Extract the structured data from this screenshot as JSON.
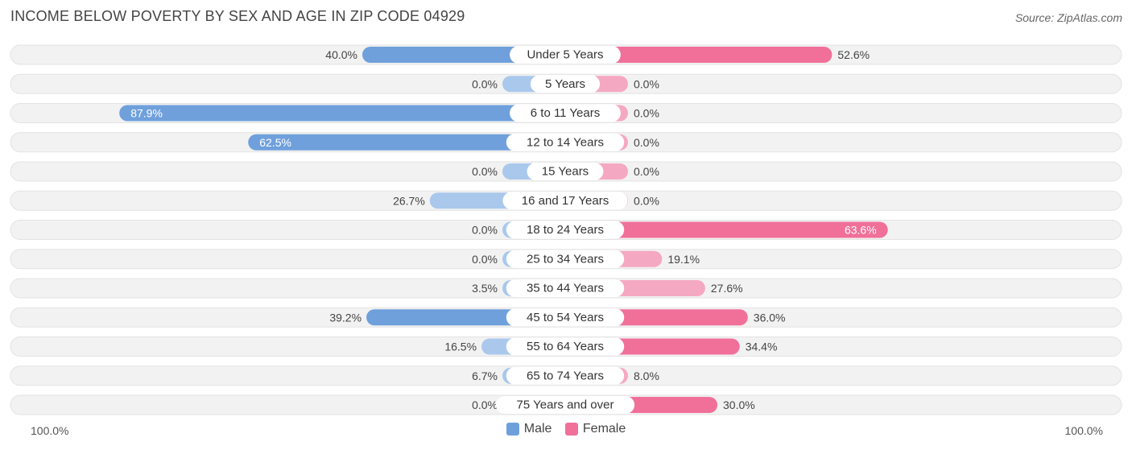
{
  "header": {
    "title": "INCOME BELOW POVERTY BY SEX AND AGE IN ZIP CODE 04929",
    "source": "Source: ZipAtlas.com"
  },
  "axis": {
    "left_label": "100.0%",
    "right_label": "100.0%"
  },
  "legend": {
    "male_label": "Male",
    "female_label": "Female"
  },
  "colors": {
    "male_strong": "#6fa0dc",
    "male_light": "#a9c8ec",
    "female_strong": "#f07099",
    "female_light": "#f5a8c2",
    "row_bg": "#f2f2f2"
  },
  "chart_data": {
    "type": "bar",
    "title": "INCOME BELOW POVERTY BY SEX AND AGE IN ZIP CODE 04929",
    "categories": [
      "Under 5 Years",
      "5 Years",
      "6 to 11 Years",
      "12 to 14 Years",
      "15 Years",
      "16 and 17 Years",
      "18 to 24 Years",
      "25 to 34 Years",
      "35 to 44 Years",
      "45 to 54 Years",
      "55 to 64 Years",
      "65 to 74 Years",
      "75 Years and over"
    ],
    "series": [
      {
        "name": "Male",
        "values": [
          40.0,
          0.0,
          87.9,
          62.5,
          0.0,
          26.7,
          0.0,
          0.0,
          3.5,
          39.2,
          16.5,
          6.7,
          0.0
        ],
        "labels": [
          "40.0%",
          "0.0%",
          "87.9%",
          "62.5%",
          "0.0%",
          "26.7%",
          "0.0%",
          "0.0%",
          "3.5%",
          "39.2%",
          "16.5%",
          "6.7%",
          "0.0%"
        ]
      },
      {
        "name": "Female",
        "values": [
          52.6,
          0.0,
          0.0,
          0.0,
          0.0,
          0.0,
          63.6,
          19.1,
          27.6,
          36.0,
          34.4,
          8.0,
          30.0
        ],
        "labels": [
          "52.6%",
          "0.0%",
          "0.0%",
          "0.0%",
          "0.0%",
          "0.0%",
          "63.6%",
          "19.1%",
          "27.6%",
          "36.0%",
          "34.4%",
          "8.0%",
          "30.0%"
        ]
      }
    ],
    "xlim": [
      -100,
      100
    ],
    "legend_position": "bottom-center"
  }
}
